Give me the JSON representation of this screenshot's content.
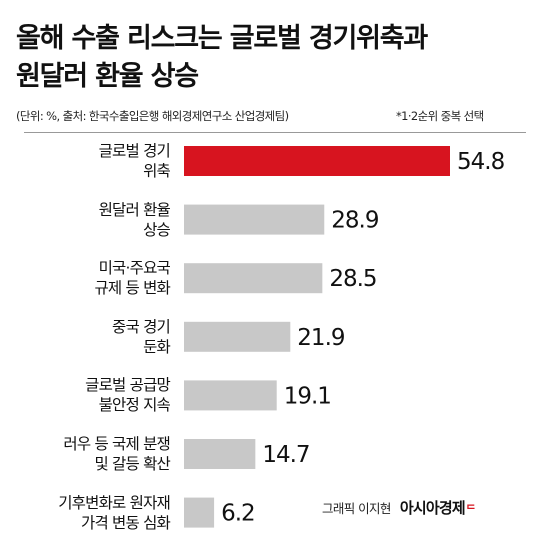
{
  "title_line1": "올해 수출 리스크는 글로벌 경기위축과",
  "title_line2": "원달러 환율 상승",
  "source": "(단위: %, 출처: 한국수출입은행 해외경제연구소 산업경제팀)",
  "note": "*1·2순위 중복 선택",
  "credit_author": "그래픽 이지현",
  "credit_brand": "아시아경제",
  "colors": {
    "highlight": "#d7141f",
    "bar": "#c8c8c8",
    "text": "#111111"
  },
  "chart_data": {
    "type": "bar",
    "orientation": "horizontal",
    "categories": [
      [
        "글로벌 경기",
        "위축"
      ],
      [
        "원달러 환율",
        "상승"
      ],
      [
        "미국·주요국",
        "규제 등 변화"
      ],
      [
        "중국 경기",
        "둔화"
      ],
      [
        "글로벌 공급망",
        "불안정 지속"
      ],
      [
        "러우 등 국제 분쟁",
        "및 갈등 확산"
      ],
      [
        "기후변화로 원자재",
        "가격 변동 심화"
      ]
    ],
    "values": [
      54.8,
      28.9,
      28.5,
      21.9,
      19.1,
      14.7,
      6.2
    ],
    "highlight_index": 0
  }
}
